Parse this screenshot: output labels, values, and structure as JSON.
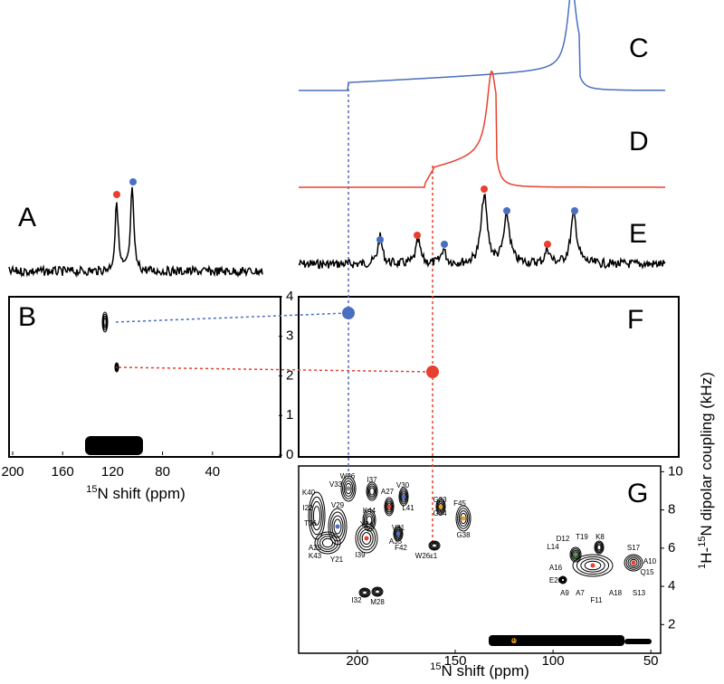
{
  "panel_labels": [
    "A",
    "B",
    "C",
    "D",
    "E",
    "F",
    "G"
  ],
  "chart_data": [
    {
      "type": "contour",
      "xlim": [
        200,
        0
      ],
      "xticks": [
        200,
        160,
        120,
        80,
        40
      ],
      "ylim": [
        0,
        4
      ],
      "yticks": [
        0,
        1,
        2,
        3,
        4
      ],
      "x_label": {
        "sup": "15",
        "text": "N shift (ppm)"
      }
    },
    {
      "type": "contour",
      "xlim": [
        230,
        45
      ],
      "xticks": [
        200,
        150,
        100,
        50
      ],
      "ylim": [
        0.5,
        10.3
      ],
      "yticks": [
        2,
        4,
        6,
        8,
        10
      ],
      "x_label": {
        "sup": "15",
        "text": "N shift (ppm)"
      },
      "y_label": {
        "sup1": "1",
        "part1": "H-",
        "sup2": "15",
        "part2": "N dipolar coupling (kHz)"
      },
      "peak_labels": [
        "W26",
        "V33",
        "I37",
        "V30",
        "G23",
        "G34",
        "F45",
        "G38",
        "K40",
        "V29",
        "K44",
        "A27",
        "L41",
        "I22",
        "T36",
        "Y24",
        "V31",
        "A25",
        "K43",
        "Y21",
        "I39",
        "A35",
        "F42",
        "W26ε1",
        "I32",
        "M28",
        "D12",
        "T19",
        "K8",
        "L14",
        "S17",
        "A10",
        "A16",
        "Q15",
        "E20",
        "A9",
        "A7",
        "F11",
        "A18",
        "S13",
        "A49",
        "G3"
      ]
    }
  ]
}
